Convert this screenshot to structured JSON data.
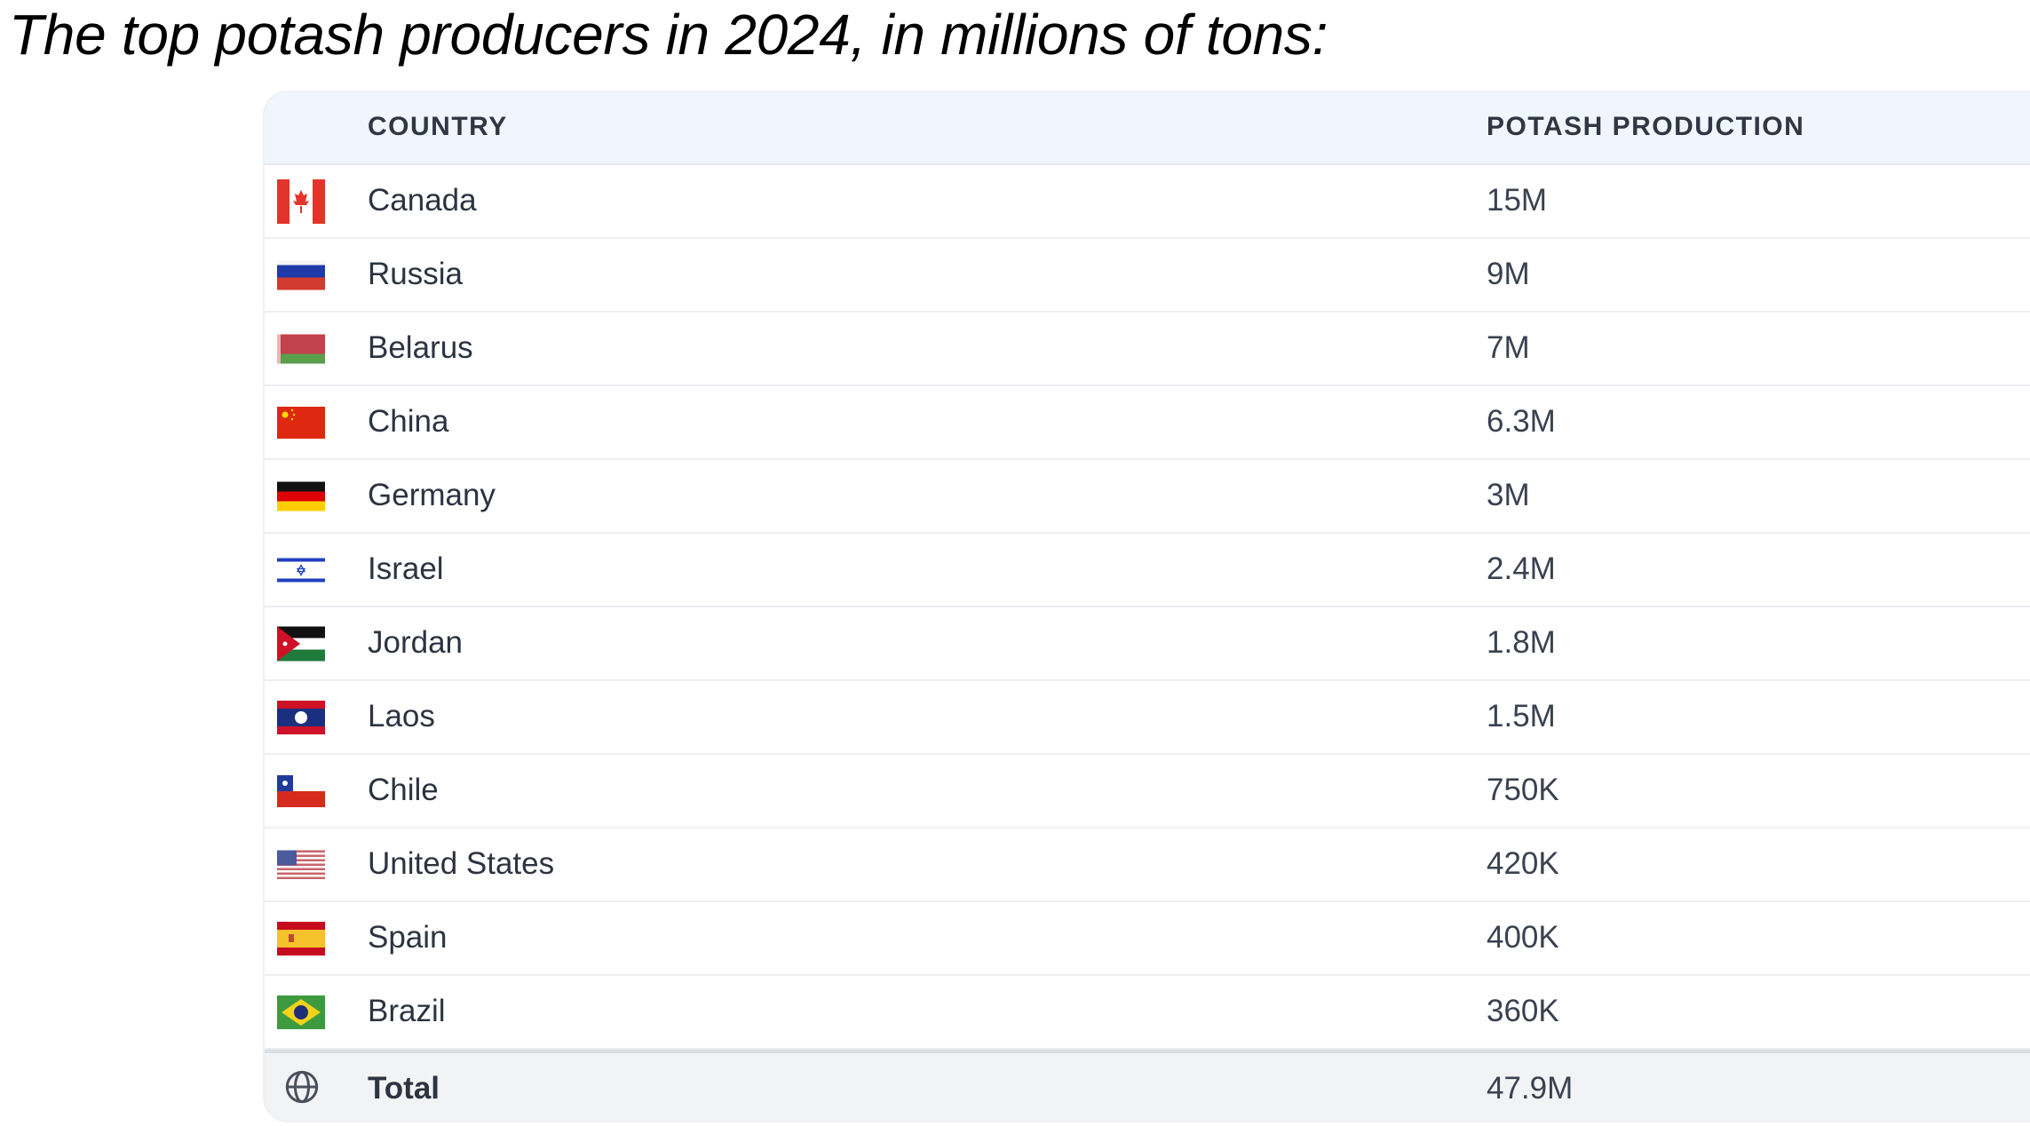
{
  "title": "The top potash producers in 2024, in millions of tons:",
  "table": {
    "headers": {
      "country": "COUNTRY",
      "production": "POTASH PRODUCTION"
    },
    "rows": [
      {
        "country": "Canada",
        "production": "15M",
        "flag": "canada-flag"
      },
      {
        "country": "Russia",
        "production": "9M",
        "flag": "russia-flag"
      },
      {
        "country": "Belarus",
        "production": "7M",
        "flag": "belarus-flag"
      },
      {
        "country": "China",
        "production": "6.3M",
        "flag": "china-flag"
      },
      {
        "country": "Germany",
        "production": "3M",
        "flag": "germany-flag"
      },
      {
        "country": "Israel",
        "production": "2.4M",
        "flag": "israel-flag"
      },
      {
        "country": "Jordan",
        "production": "1.8M",
        "flag": "jordan-flag"
      },
      {
        "country": "Laos",
        "production": "1.5M",
        "flag": "laos-flag"
      },
      {
        "country": "Chile",
        "production": "750K",
        "flag": "chile-flag"
      },
      {
        "country": "United States",
        "production": "420K",
        "flag": "usa-flag"
      },
      {
        "country": "Spain",
        "production": "400K",
        "flag": "spain-flag"
      },
      {
        "country": "Brazil",
        "production": "360K",
        "flag": "brazil-flag"
      }
    ],
    "total": {
      "label": "Total",
      "production": "47.9M",
      "icon": "globe-icon"
    }
  }
}
